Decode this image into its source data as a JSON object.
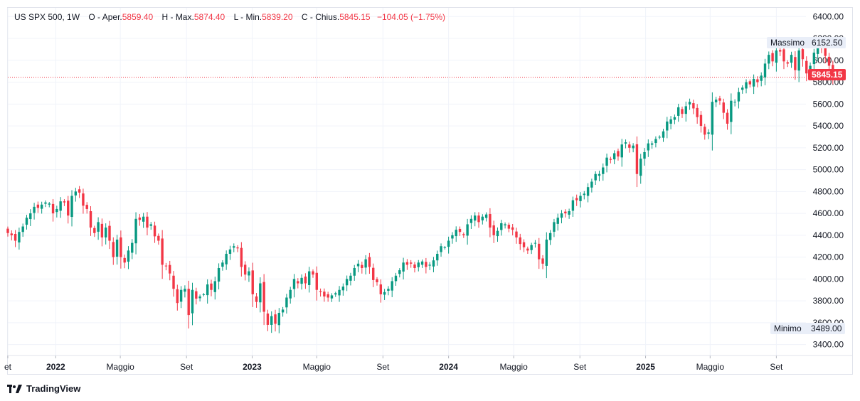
{
  "legend": {
    "symbol": "US SPX 500, 1W",
    "open_label": "O - Aper.",
    "open": "5859.40",
    "high_label": "H - Max.",
    "high": "5874.40",
    "low_label": "L - Min.",
    "low": "5839.20",
    "close_label": "C - Chius.",
    "close": "5845.15",
    "change": "−104.05 (−1.75%)"
  },
  "tags": {
    "max_label": "Massimo",
    "max_value": "6152.50",
    "min_label": "Minimo",
    "min_value": "3489.00",
    "last_price": "5845.15"
  },
  "brand": {
    "name": "TradingView",
    "icon": "tradingview-logo-icon"
  },
  "colors": {
    "up": "#089981",
    "down": "#f23645",
    "grid": "#f0f3fa",
    "text": "#131722",
    "tag_bg": "#e9eef8"
  },
  "chart_data": {
    "type": "candlestick",
    "title": "US SPX 500, 1W",
    "interval": "1W",
    "ylim": [
      3300,
      6480
    ],
    "y_ticks": [
      3400,
      3600,
      3800,
      4000,
      4200,
      4400,
      4600,
      4800,
      5000,
      5200,
      5400,
      5600,
      5800,
      6000,
      6200,
      6400
    ],
    "y_tick_labels": [
      "3400.00",
      "3600.00",
      "3800.00",
      "4000.00",
      "4200.00",
      "4400.00",
      "4600.00",
      "4800.00",
      "5000.00",
      "5200.00",
      "5400.00",
      "5600.00",
      "5800.00",
      "6000.00",
      "6200.00",
      "6400.00"
    ],
    "x_range": [
      "2021-10-04",
      "2025-10-26"
    ],
    "x_ticks": [
      {
        "label": "et",
        "date": "2021-10-01"
      },
      {
        "label": "2022",
        "date": "2022-01-01"
      },
      {
        "label": "Maggio",
        "date": "2022-05-01"
      },
      {
        "label": "Set",
        "date": "2022-09-01"
      },
      {
        "label": "2023",
        "date": "2023-01-01"
      },
      {
        "label": "Maggio",
        "date": "2023-05-01"
      },
      {
        "label": "Set",
        "date": "2023-09-01"
      },
      {
        "label": "2024",
        "date": "2024-01-01"
      },
      {
        "label": "Maggio",
        "date": "2024-05-01"
      },
      {
        "label": "Set",
        "date": "2024-09-01"
      },
      {
        "label": "2025",
        "date": "2025-01-01"
      },
      {
        "label": "Maggio",
        "date": "2025-05-01"
      },
      {
        "label": "Set",
        "date": "2025-09-01"
      }
    ],
    "grid": true,
    "reference_lines": [
      {
        "name": "last-close",
        "value": 5845.15,
        "style": "dotted"
      }
    ],
    "first_week": "2021-10-04",
    "close_series": [
      4420,
      4400,
      4350,
      4430,
      4480,
      4560,
      4600,
      4660,
      4650,
      4680,
      4700,
      4690,
      4600,
      4640,
      4710,
      4700,
      4580,
      4760,
      4800,
      4790,
      4670,
      4640,
      4470,
      4420,
      4520,
      4380,
      4470,
      4350,
      4200,
      4360,
      4200,
      4150,
      4260,
      4330,
      4550,
      4540,
      4570,
      4470,
      4500,
      4390,
      4350,
      4130,
      4120,
      4050,
      3910,
      3780,
      3900,
      3910,
      3670,
      3900,
      3820,
      3840,
      3860,
      3950,
      3900,
      3980,
      4100,
      4150,
      4230,
      4270,
      4300,
      4280,
      4110,
      4040,
      4070,
      3860,
      3790,
      3960,
      3700,
      3580,
      3660,
      3590,
      3690,
      3720,
      3830,
      3900,
      4000,
      3960,
      4010,
      3960,
      4070,
      4040,
      3900,
      3880,
      3840,
      3830,
      3850,
      3870,
      3900,
      3930,
      4000,
      4030,
      4100,
      4140,
      4100,
      4180,
      4110,
      3990,
      3970,
      3860,
      3880,
      3910,
      3980,
      4030,
      4080,
      4150,
      4130,
      4140,
      4100,
      4150,
      4160,
      4110,
      4130,
      4170,
      4230,
      4300,
      4290,
      4350,
      4400,
      4450,
      4430,
      4400,
      4500,
      4550,
      4580,
      4520,
      4570,
      4590,
      4470,
      4400,
      4440,
      4510,
      4500,
      4460,
      4450,
      4380,
      4320,
      4290,
      4260,
      4310,
      4330,
      4180,
      4140,
      4360,
      4420,
      4520,
      4560,
      4600,
      4600,
      4620,
      4720,
      4720,
      4760,
      4780,
      4840,
      4890,
      4960,
      4960,
      5020,
      5110,
      5090,
      5150,
      5120,
      5230,
      5250,
      5200,
      5220,
      4960,
      5100,
      5160,
      5240,
      5240,
      5280,
      5300,
      5350,
      5440,
      5460,
      5480,
      5570,
      5510,
      5580,
      5620,
      5560,
      5480,
      5400,
      5320,
      5340,
      5620,
      5640,
      5630,
      5520,
      5420,
      5630,
      5620,
      5710,
      5750,
      5800,
      5780,
      5830,
      5800,
      5860,
      5970,
      6050,
      5990,
      6090,
      6080,
      5990,
      5970,
      6050,
      5910,
      6090,
      6010,
      5880,
      5950,
      6070,
      6120,
      6110,
      6040,
      5950,
      5845.15
    ]
  }
}
